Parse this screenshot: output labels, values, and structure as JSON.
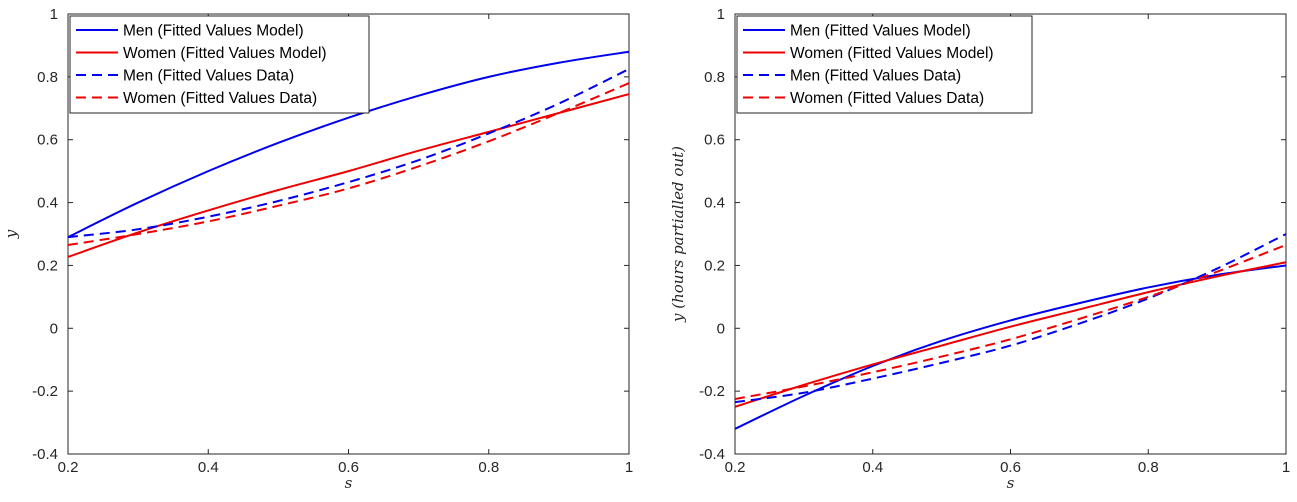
{
  "chart_data": [
    {
      "type": "line",
      "xlabel": "s",
      "ylabel": "y",
      "xlim": [
        0.2,
        1
      ],
      "ylim": [
        -0.4,
        1
      ],
      "xticks": [
        0.2,
        0.4,
        0.6,
        0.8,
        1
      ],
      "xtick_labels": [
        "0.2",
        "0.4",
        "0.6",
        "0.8",
        "1"
      ],
      "yticks": [
        -0.4,
        -0.2,
        0,
        0.2,
        0.4,
        0.6,
        0.8,
        1
      ],
      "ytick_labels": [
        "-0.4",
        "-0.2",
        "0",
        "0.2",
        "0.4",
        "0.6",
        "0.8",
        "1"
      ],
      "grid": false,
      "legend_position": "top-left",
      "series": [
        {
          "name": "Men (Fitted Values Model)",
          "color": "#0000ee",
          "style": "solid",
          "x": [
            0.2,
            0.3,
            0.4,
            0.5,
            0.6,
            0.7,
            0.8,
            0.9,
            1.0
          ],
          "y": [
            0.29,
            0.4,
            0.5,
            0.59,
            0.67,
            0.74,
            0.8,
            0.845,
            0.88
          ]
        },
        {
          "name": "Women (Fitted Values Model)",
          "color": "#ee0000",
          "style": "solid",
          "x": [
            0.2,
            0.3,
            0.4,
            0.5,
            0.6,
            0.7,
            0.8,
            0.9,
            1.0
          ],
          "y": [
            0.227,
            0.305,
            0.375,
            0.44,
            0.5,
            0.565,
            0.625,
            0.685,
            0.745
          ]
        },
        {
          "name": "Men (Fitted Values Data)",
          "color": "#0000ee",
          "style": "dashed",
          "x": [
            0.2,
            0.3,
            0.4,
            0.5,
            0.6,
            0.7,
            0.8,
            0.9,
            1.0
          ],
          "y": [
            0.29,
            0.315,
            0.355,
            0.405,
            0.465,
            0.535,
            0.62,
            0.715,
            0.825
          ]
        },
        {
          "name": "Women (Fitted Values Data)",
          "color": "#ee0000",
          "style": "dashed",
          "x": [
            0.2,
            0.3,
            0.4,
            0.5,
            0.6,
            0.7,
            0.8,
            0.9,
            1.0
          ],
          "y": [
            0.265,
            0.3,
            0.34,
            0.39,
            0.445,
            0.515,
            0.595,
            0.685,
            0.78
          ]
        }
      ]
    },
    {
      "type": "line",
      "xlabel": "s",
      "ylabel": "y (hours partialled out)",
      "xlim": [
        0.2,
        1
      ],
      "ylim": [
        -0.4,
        1
      ],
      "xticks": [
        0.2,
        0.4,
        0.6,
        0.8,
        1
      ],
      "xtick_labels": [
        "0.2",
        "0.4",
        "0.6",
        "0.8",
        "1"
      ],
      "yticks": [
        -0.4,
        -0.2,
        0,
        0.2,
        0.4,
        0.6,
        0.8,
        1
      ],
      "ytick_labels": [
        "-0.4",
        "-0.2",
        "0",
        "0.2",
        "0.4",
        "0.6",
        "0.8",
        "1"
      ],
      "grid": false,
      "legend_position": "top-left",
      "series": [
        {
          "name": "Men (Fitted Values Model)",
          "color": "#0000ee",
          "style": "solid",
          "x": [
            0.2,
            0.3,
            0.4,
            0.5,
            0.6,
            0.7,
            0.8,
            0.9,
            1.0
          ],
          "y": [
            -0.32,
            -0.215,
            -0.12,
            -0.04,
            0.025,
            0.08,
            0.13,
            0.17,
            0.2
          ]
        },
        {
          "name": "Women (Fitted Values Model)",
          "color": "#ee0000",
          "style": "solid",
          "x": [
            0.2,
            0.3,
            0.4,
            0.5,
            0.6,
            0.7,
            0.8,
            0.9,
            1.0
          ],
          "y": [
            -0.25,
            -0.18,
            -0.115,
            -0.055,
            0.005,
            0.06,
            0.115,
            0.165,
            0.21
          ]
        },
        {
          "name": "Men (Fitted Values Data)",
          "color": "#0000ee",
          "style": "dashed",
          "x": [
            0.2,
            0.3,
            0.4,
            0.5,
            0.6,
            0.7,
            0.8,
            0.9,
            1.0
          ],
          "y": [
            -0.235,
            -0.205,
            -0.16,
            -0.11,
            -0.055,
            0.015,
            0.095,
            0.19,
            0.3
          ]
        },
        {
          "name": "Women (Fitted Values Data)",
          "color": "#ee0000",
          "style": "dashed",
          "x": [
            0.2,
            0.3,
            0.4,
            0.5,
            0.6,
            0.7,
            0.8,
            0.9,
            1.0
          ],
          "y": [
            -0.225,
            -0.185,
            -0.14,
            -0.09,
            -0.035,
            0.03,
            0.1,
            0.18,
            0.265
          ]
        }
      ]
    }
  ]
}
